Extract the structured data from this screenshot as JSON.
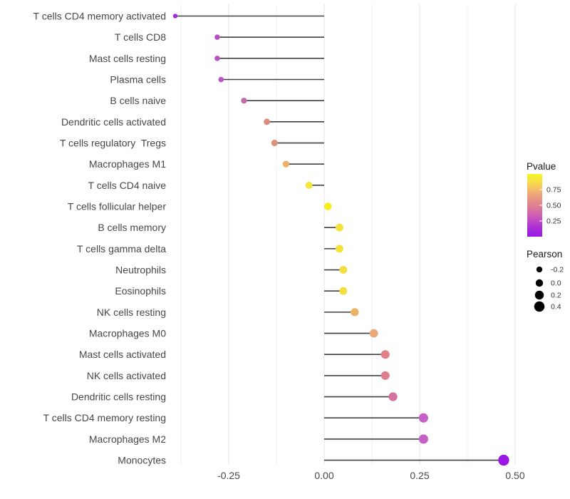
{
  "chart_data": {
    "type": "lollipop",
    "orientation": "horizontal",
    "title": "",
    "xlabel": "",
    "ylabel": "",
    "x_ticks": [
      "-0.25",
      "0.00",
      "0.25",
      "0.50"
    ],
    "x_tick_values": [
      -0.25,
      0.0,
      0.25,
      0.5
    ],
    "x_minor_values": [
      -0.375,
      -0.125,
      0.125,
      0.375
    ],
    "xlim": [
      -0.44,
      0.53
    ],
    "grid": "major+minor vertical, no panel border",
    "rows": [
      {
        "label": "T cells CD4 memory activated",
        "pearson": -0.39,
        "pvalue": 0.1,
        "color": "#9d2bd8"
      },
      {
        "label": "T cells CD8",
        "pearson": -0.28,
        "pvalue": 0.2,
        "color": "#b94fc5"
      },
      {
        "label": "Mast cells resting",
        "pearson": -0.28,
        "pvalue": 0.2,
        "color": "#b94fc5"
      },
      {
        "label": "Plasma cells",
        "pearson": -0.27,
        "pvalue": 0.22,
        "color": "#bc53c2"
      },
      {
        "label": "B cells naive",
        "pearson": -0.21,
        "pvalue": 0.3,
        "color": "#c768ab"
      },
      {
        "label": "Dendritic cells activated",
        "pearson": -0.15,
        "pvalue": 0.45,
        "color": "#d98c7e"
      },
      {
        "label": "T cells regulatory  Tregs",
        "pearson": -0.13,
        "pvalue": 0.47,
        "color": "#dd907c"
      },
      {
        "label": "Macrophages M1",
        "pearson": -0.1,
        "pvalue": 0.6,
        "color": "#edb169"
      },
      {
        "label": "T cells CD4 naive",
        "pearson": -0.04,
        "pvalue": 0.85,
        "color": "#f5e73c"
      },
      {
        "label": "T cells follicular helper",
        "pearson": 0.01,
        "pvalue": 0.93,
        "color": "#f8ef19"
      },
      {
        "label": "B cells memory",
        "pearson": 0.04,
        "pvalue": 0.85,
        "color": "#f4e23b"
      },
      {
        "label": "T cells gamma delta",
        "pearson": 0.04,
        "pvalue": 0.85,
        "color": "#f4e23b"
      },
      {
        "label": "Neutrophils",
        "pearson": 0.05,
        "pvalue": 0.82,
        "color": "#f2de3e"
      },
      {
        "label": "Eosinophils",
        "pearson": 0.05,
        "pvalue": 0.82,
        "color": "#f2de3e"
      },
      {
        "label": "NK cells resting",
        "pearson": 0.08,
        "pvalue": 0.65,
        "color": "#ecb365"
      },
      {
        "label": "Macrophages M0",
        "pearson": 0.13,
        "pvalue": 0.58,
        "color": "#eda87a"
      },
      {
        "label": "Mast cells activated",
        "pearson": 0.16,
        "pvalue": 0.48,
        "color": "#e08286"
      },
      {
        "label": "NK cells activated",
        "pearson": 0.16,
        "pvalue": 0.47,
        "color": "#dd7f8c"
      },
      {
        "label": "Dendritic cells resting",
        "pearson": 0.18,
        "pvalue": 0.4,
        "color": "#d4719f"
      },
      {
        "label": "T cells CD4 memory resting",
        "pearson": 0.26,
        "pvalue": 0.24,
        "color": "#c361c6"
      },
      {
        "label": "Macrophages M2",
        "pearson": 0.26,
        "pvalue": 0.24,
        "color": "#c361c6"
      },
      {
        "label": "Monocytes",
        "pearson": 0.47,
        "pvalue": 0.04,
        "color": "#9b16e4"
      }
    ],
    "legends": {
      "pvalue": {
        "title": "Pvalue",
        "ticks": [
          "0.75",
          "0.50",
          "0.25"
        ],
        "tick_values": [
          0.75,
          0.5,
          0.25
        ],
        "range": [
          0,
          1
        ],
        "gradient_top_to_bottom": [
          "#f1f525",
          "#f8e343",
          "#f7cb5d",
          "#f0ad74",
          "#e89483",
          "#e0808f",
          "#d56ba4",
          "#c854bb",
          "#b53ad0",
          "#a326de",
          "#991be2"
        ]
      },
      "pearson": {
        "title": "Pearson",
        "items": [
          {
            "label": "-0.2",
            "value": -0.2
          },
          {
            "label": "0.0",
            "value": 0.0
          },
          {
            "label": "0.2",
            "value": 0.2
          },
          {
            "label": "0.4",
            "value": 0.4
          }
        ],
        "dot_color": "#000000"
      }
    },
    "colors": {
      "stem": "#404040",
      "axis_text": "#474747",
      "grid_major": "#e6e6e6",
      "grid_minor": "#f2f2f2",
      "background": "#ffffff"
    }
  }
}
